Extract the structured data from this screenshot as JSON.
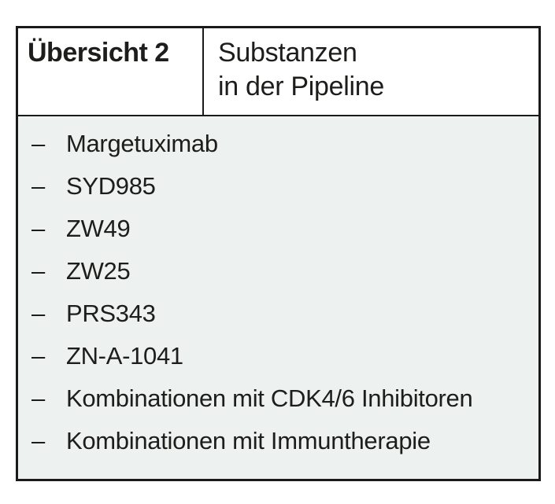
{
  "table": {
    "label": "Übersicht 2",
    "title_line1": "Substanzen",
    "title_line2": "in der Pipeline",
    "bullet": "–",
    "items": [
      "Margetuximab",
      "SYD985",
      "ZW49",
      "ZW25",
      "PRS343",
      "ZN-A-1041",
      "Kombinationen mit CDK4/6 Inhibitoren",
      "Kombinationen mit Immuntherapie"
    ]
  },
  "colors": {
    "border": "#1a1a1a",
    "header_background": "#ffffff",
    "body_background": "#edf2f0",
    "text": "#1d1d1b"
  }
}
